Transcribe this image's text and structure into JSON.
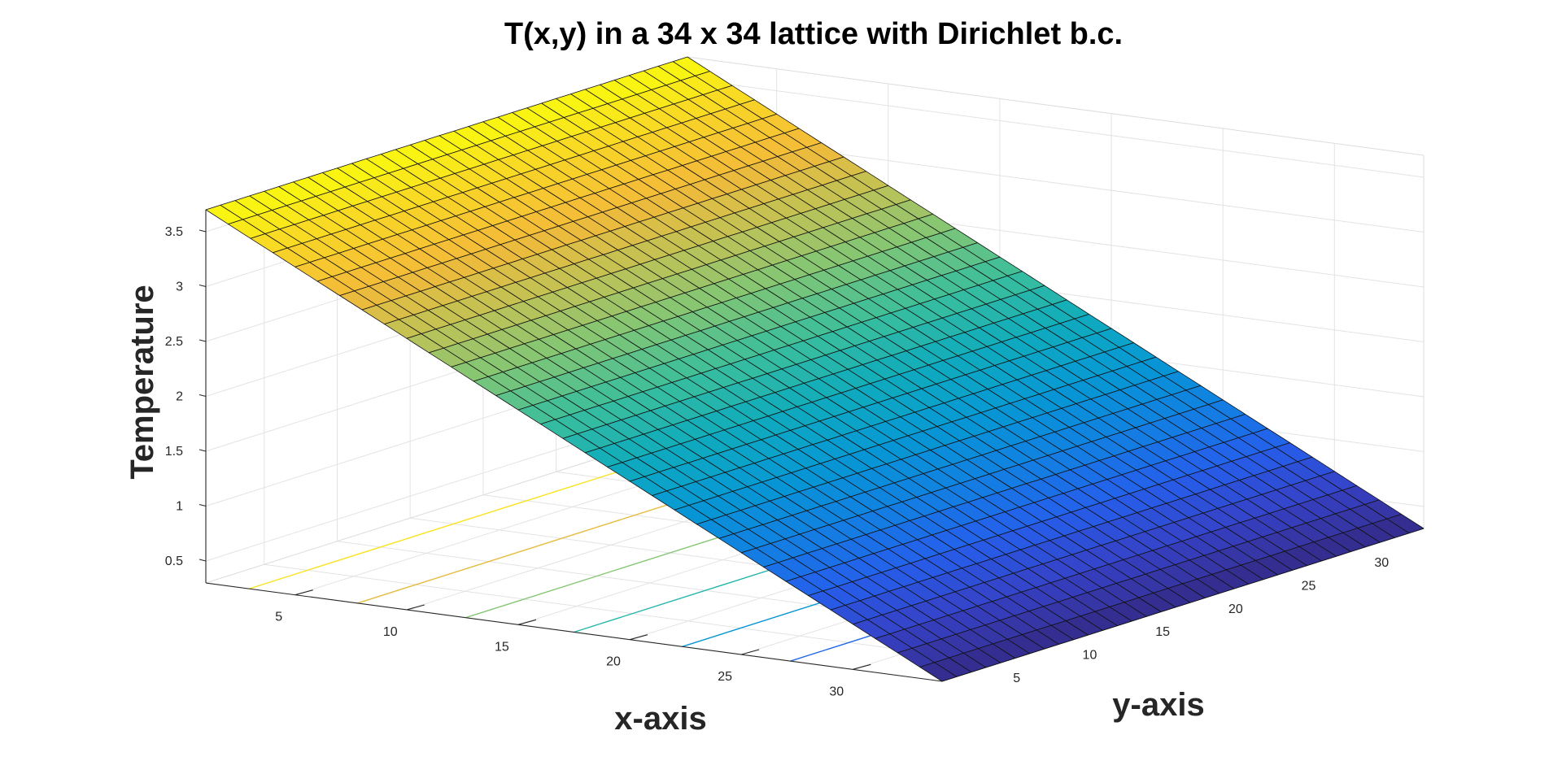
{
  "chart_data": {
    "type": "surface",
    "title": "T(x,y) in a 34 x 34 lattice with Dirichlet b.c.",
    "xlabel": "x-axis",
    "ylabel": "y-axis",
    "zlabel": "Temperature",
    "grid": true,
    "colormap": "parula",
    "lattice_size": [
      34,
      34
    ],
    "x_ticks": [
      5,
      10,
      15,
      20,
      25,
      30
    ],
    "y_ticks": [
      5,
      10,
      15,
      20,
      25,
      30
    ],
    "z_ticks": [
      0.5,
      1,
      1.5,
      2,
      2.5,
      3,
      3.5
    ],
    "xlim": [
      1,
      34
    ],
    "ylim": [
      1,
      34
    ],
    "zlim": [
      0.3,
      3.7
    ],
    "surface": {
      "z_at_x_min": 3.7,
      "z_at_x_max": 0.3,
      "variation_along_y": 0
    },
    "contour_levels": [
      1,
      1.5,
      2,
      2.5,
      3,
      3.5
    ]
  }
}
